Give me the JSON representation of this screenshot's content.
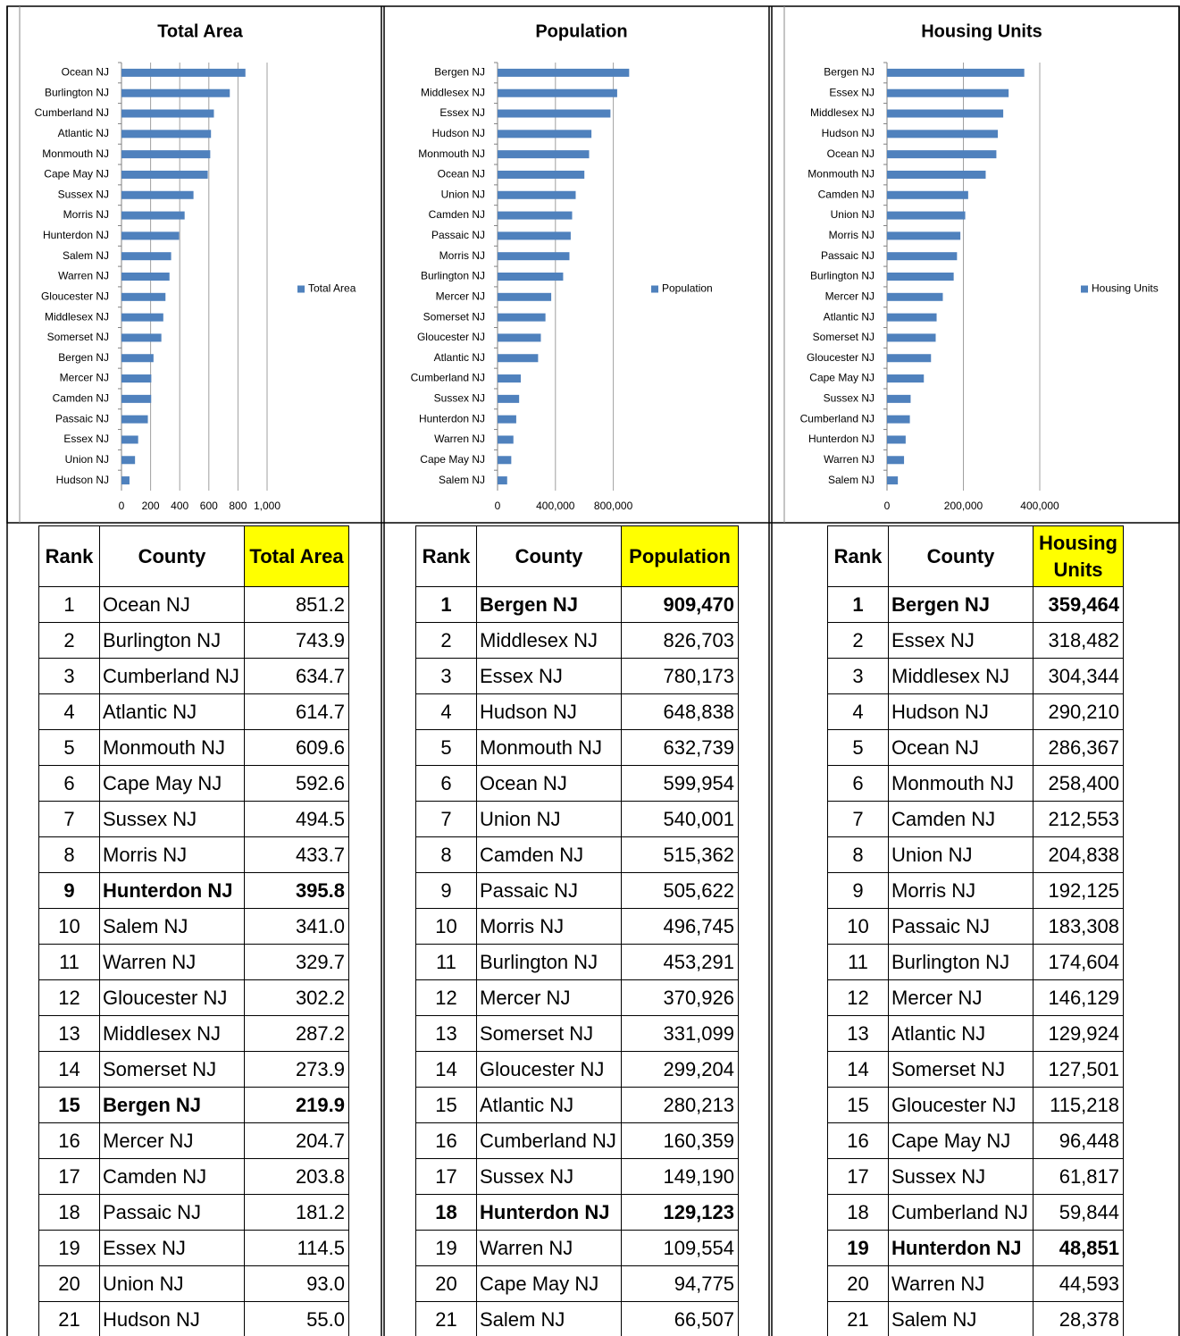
{
  "chart_data": [
    {
      "type": "barh",
      "title": "Total Area",
      "categories": [
        "Ocean NJ",
        "Burlington NJ",
        "Cumberland NJ",
        "Atlantic NJ",
        "Monmouth NJ",
        "Cape May NJ",
        "Sussex NJ",
        "Morris NJ",
        "Hunterdon NJ",
        "Salem NJ",
        "Warren NJ",
        "Gloucester NJ",
        "Middlesex NJ",
        "Somerset NJ",
        "Bergen NJ",
        "Mercer NJ",
        "Camden NJ",
        "Passaic NJ",
        "Essex NJ",
        "Union NJ",
        "Hudson NJ"
      ],
      "series": [
        {
          "name": "Total Area",
          "color": "#4f81bd",
          "values": [
            851.2,
            743.9,
            634.7,
            614.7,
            609.6,
            592.6,
            494.5,
            433.7,
            395.8,
            341.0,
            329.7,
            302.2,
            287.2,
            273.9,
            219.9,
            204.7,
            203.8,
            181.2,
            114.5,
            93.0,
            55.0
          ]
        }
      ],
      "xlim": [
        0,
        1000
      ],
      "xticks": [
        0,
        200,
        400,
        600,
        800,
        {
          "value": 1000,
          "label": "1,000"
        }
      ],
      "grid": true,
      "legend": "right"
    },
    {
      "type": "barh",
      "title": "Population",
      "categories": [
        "Bergen NJ",
        "Middlesex NJ",
        "Essex NJ",
        "Hudson NJ",
        "Monmouth NJ",
        "Ocean NJ",
        "Union NJ",
        "Camden NJ",
        "Passaic NJ",
        "Morris NJ",
        "Burlington NJ",
        "Mercer NJ",
        "Somerset NJ",
        "Gloucester NJ",
        "Atlantic NJ",
        "Cumberland NJ",
        "Sussex NJ",
        "Hunterdon NJ",
        "Warren NJ",
        "Cape May NJ",
        "Salem NJ"
      ],
      "series": [
        {
          "name": "Population",
          "color": "#4f81bd",
          "values": [
            909470,
            826703,
            780173,
            648838,
            632739,
            599954,
            540001,
            515362,
            505622,
            496745,
            453291,
            370926,
            331099,
            299204,
            280213,
            160359,
            149190,
            129123,
            109554,
            94775,
            66507
          ]
        }
      ],
      "xlim": [
        0,
        1000000
      ],
      "xticks": [
        0,
        {
          "value": 400000,
          "label": "400,000"
        },
        {
          "value": 800000,
          "label": "800,000"
        }
      ],
      "grid": true,
      "legend": "right"
    },
    {
      "type": "barh",
      "title": "Housing Units",
      "categories": [
        "Bergen NJ",
        "Essex NJ",
        "Middlesex NJ",
        "Hudson NJ",
        "Ocean NJ",
        "Monmouth NJ",
        "Camden NJ",
        "Union NJ",
        "Morris NJ",
        "Passaic NJ",
        "Burlington NJ",
        "Mercer NJ",
        "Atlantic NJ",
        "Somerset NJ",
        "Gloucester NJ",
        "Cape May NJ",
        "Sussex NJ",
        "Cumberland NJ",
        "Hunterdon NJ",
        "Warren NJ",
        "Salem NJ"
      ],
      "series": [
        {
          "name": "Housing Units",
          "color": "#4f81bd",
          "values": [
            359464,
            318482,
            304344,
            290210,
            286367,
            258400,
            212553,
            204838,
            192125,
            183308,
            174604,
            146129,
            129924,
            127501,
            115218,
            96448,
            61817,
            59844,
            48851,
            44593,
            28378
          ]
        }
      ],
      "xlim": [
        0,
        400000
      ],
      "xticks": [
        0,
        {
          "value": 200000,
          "label": "200,000"
        },
        {
          "value": 400000,
          "label": "400,000"
        }
      ],
      "grid": true,
      "legend": "right"
    }
  ],
  "tables": [
    {
      "header": [
        "Rank",
        "County",
        "Total Area"
      ],
      "highlight_column": 2,
      "highlight_color": "#ffff00",
      "bold_rows": [
        8,
        14
      ],
      "rows": [
        [
          1,
          "Ocean NJ",
          "851.2"
        ],
        [
          2,
          "Burlington NJ",
          "743.9"
        ],
        [
          3,
          "Cumberland NJ",
          "634.7"
        ],
        [
          4,
          "Atlantic NJ",
          "614.7"
        ],
        [
          5,
          "Monmouth NJ",
          "609.6"
        ],
        [
          6,
          "Cape May NJ",
          "592.6"
        ],
        [
          7,
          "Sussex NJ",
          "494.5"
        ],
        [
          8,
          "Morris NJ",
          "433.7"
        ],
        [
          9,
          "Hunterdon NJ",
          "395.8"
        ],
        [
          10,
          "Salem NJ",
          "341.0"
        ],
        [
          11,
          "Warren NJ",
          "329.7"
        ],
        [
          12,
          "Gloucester NJ",
          "302.2"
        ],
        [
          13,
          "Middlesex NJ",
          "287.2"
        ],
        [
          14,
          "Somerset NJ",
          "273.9"
        ],
        [
          15,
          "Bergen NJ",
          "219.9"
        ],
        [
          16,
          "Mercer NJ",
          "204.7"
        ],
        [
          17,
          "Camden NJ",
          "203.8"
        ],
        [
          18,
          "Passaic NJ",
          "181.2"
        ],
        [
          19,
          "Essex NJ",
          "114.5"
        ],
        [
          20,
          "Union NJ",
          "93.0"
        ],
        [
          21,
          "Hudson NJ",
          "55.0"
        ]
      ]
    },
    {
      "header": [
        "Rank",
        "County",
        "Population"
      ],
      "highlight_column": 2,
      "highlight_color": "#ffff00",
      "bold_rows": [
        0,
        17
      ],
      "rows": [
        [
          1,
          "Bergen NJ",
          "909,470"
        ],
        [
          2,
          "Middlesex NJ",
          "826,703"
        ],
        [
          3,
          "Essex NJ",
          "780,173"
        ],
        [
          4,
          "Hudson NJ",
          "648,838"
        ],
        [
          5,
          "Monmouth NJ",
          "632,739"
        ],
        [
          6,
          "Ocean NJ",
          "599,954"
        ],
        [
          7,
          "Union NJ",
          "540,001"
        ],
        [
          8,
          "Camden NJ",
          "515,362"
        ],
        [
          9,
          "Passaic NJ",
          "505,622"
        ],
        [
          10,
          "Morris NJ",
          "496,745"
        ],
        [
          11,
          "Burlington NJ",
          "453,291"
        ],
        [
          12,
          "Mercer NJ",
          "370,926"
        ],
        [
          13,
          "Somerset NJ",
          "331,099"
        ],
        [
          14,
          "Gloucester NJ",
          "299,204"
        ],
        [
          15,
          "Atlantic NJ",
          "280,213"
        ],
        [
          16,
          "Cumberland NJ",
          "160,359"
        ],
        [
          17,
          "Sussex NJ",
          "149,190"
        ],
        [
          18,
          "Hunterdon NJ",
          "129,123"
        ],
        [
          19,
          "Warren NJ",
          "109,554"
        ],
        [
          20,
          "Cape May NJ",
          "94,775"
        ],
        [
          21,
          "Salem NJ",
          "66,507"
        ]
      ]
    },
    {
      "header": [
        "Rank",
        "County",
        "Housing Units"
      ],
      "highlight_column": 2,
      "highlight_color": "#ffff00",
      "bold_rows": [
        0,
        18
      ],
      "rows": [
        [
          1,
          "Bergen NJ",
          "359,464"
        ],
        [
          2,
          "Essex NJ",
          "318,482"
        ],
        [
          3,
          "Middlesex NJ",
          "304,344"
        ],
        [
          4,
          "Hudson NJ",
          "290,210"
        ],
        [
          5,
          "Ocean NJ",
          "286,367"
        ],
        [
          6,
          "Monmouth NJ",
          "258,400"
        ],
        [
          7,
          "Camden NJ",
          "212,553"
        ],
        [
          8,
          "Union NJ",
          "204,838"
        ],
        [
          9,
          "Morris NJ",
          "192,125"
        ],
        [
          10,
          "Passaic NJ",
          "183,308"
        ],
        [
          11,
          "Burlington NJ",
          "174,604"
        ],
        [
          12,
          "Mercer NJ",
          "146,129"
        ],
        [
          13,
          "Atlantic NJ",
          "129,924"
        ],
        [
          14,
          "Somerset NJ",
          "127,501"
        ],
        [
          15,
          "Gloucester NJ",
          "115,218"
        ],
        [
          16,
          "Cape May NJ",
          "96,448"
        ],
        [
          17,
          "Sussex NJ",
          "61,817"
        ],
        [
          18,
          "Cumberland NJ",
          "59,844"
        ],
        [
          19,
          "Hunterdon NJ",
          "48,851"
        ],
        [
          20,
          "Warren NJ",
          "44,593"
        ],
        [
          21,
          "Salem NJ",
          "28,378"
        ]
      ]
    }
  ]
}
